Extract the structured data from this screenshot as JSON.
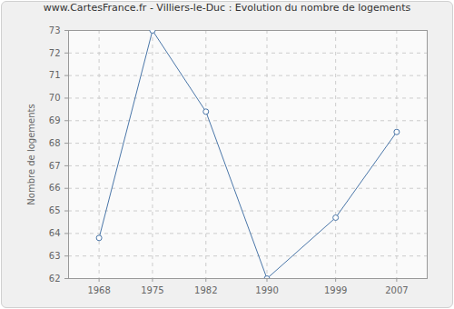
{
  "chart_data": {
    "type": "line",
    "title": "www.CartesFrance.fr - Villiers-le-Duc : Evolution du nombre de logements",
    "y_label": "Nombre de logements",
    "x": [
      1968,
      1975,
      1982,
      1990,
      1999,
      2007
    ],
    "values": [
      63.8,
      73,
      69.4,
      62,
      64.7,
      68.5
    ],
    "color": "#4a76a8",
    "marker": "circle",
    "xlim": [
      1964,
      2011
    ],
    "xticks": [
      1968,
      1975,
      1982,
      1990,
      1999,
      2007
    ],
    "ylim": [
      62,
      73
    ],
    "yticks": [
      62,
      63,
      64,
      65,
      66,
      67,
      68,
      69,
      70,
      71,
      72,
      73
    ],
    "grid": true
  }
}
